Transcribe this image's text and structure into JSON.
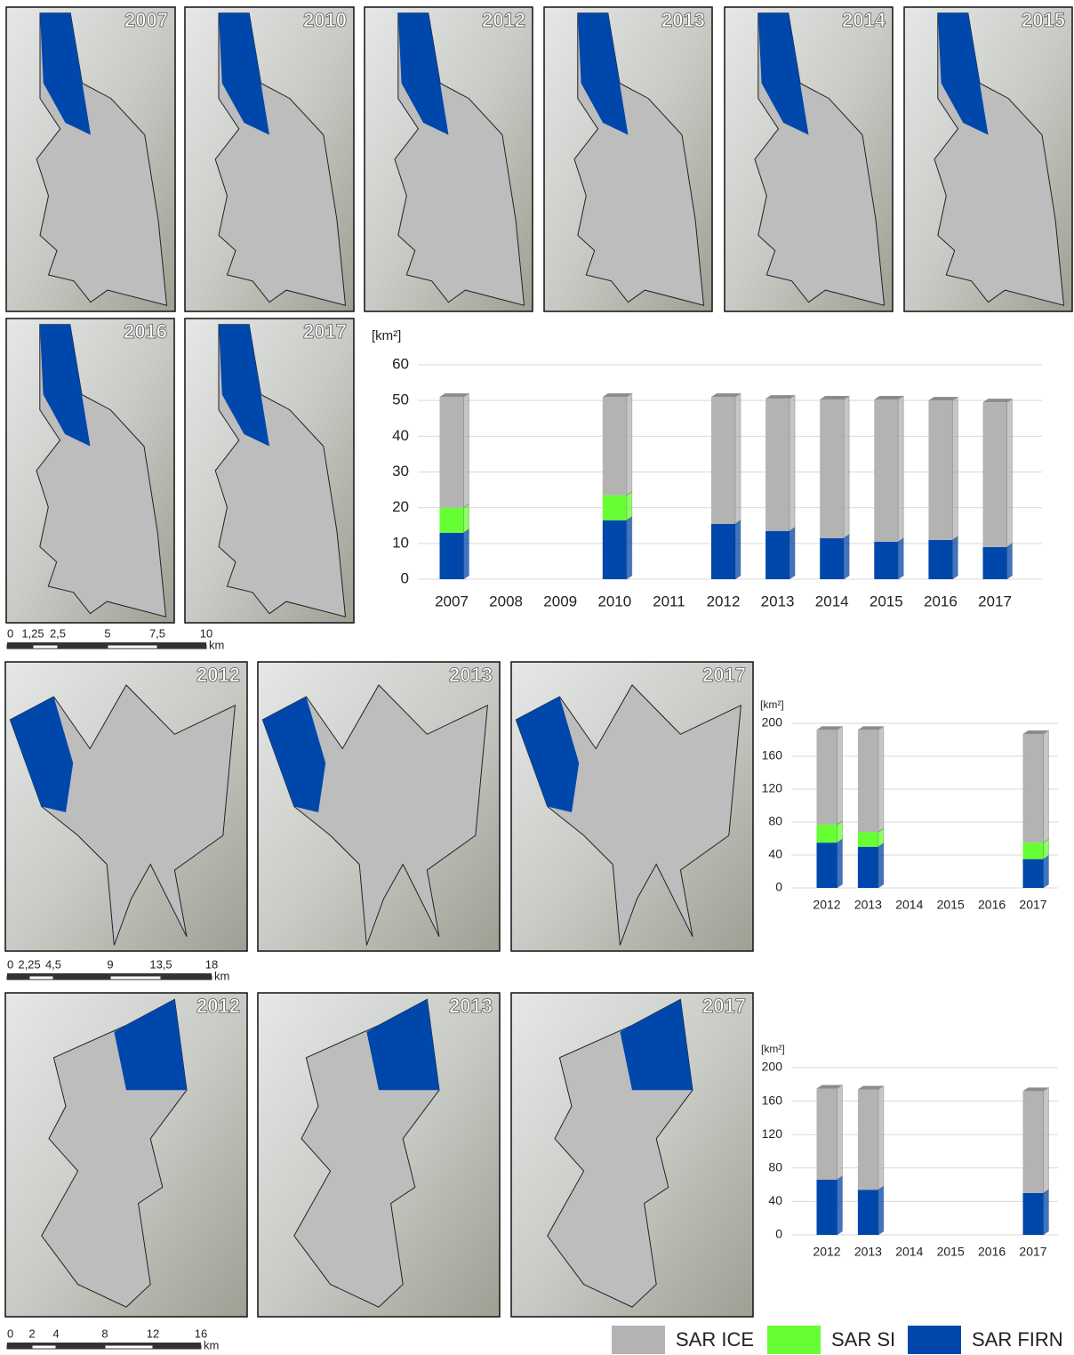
{
  "maps": [
    {
      "year": "2007"
    },
    {
      "year": "2010"
    },
    {
      "year": "2012"
    },
    {
      "year": "2013"
    },
    {
      "year": "2014"
    },
    {
      "year": "2015"
    },
    {
      "year": "2016"
    },
    {
      "year": "2017"
    },
    {
      "year": "2012"
    },
    {
      "year": "2013"
    },
    {
      "year": "2017"
    },
    {
      "year": "2012"
    },
    {
      "year": "2013"
    },
    {
      "year": "2017"
    }
  ],
  "scale_bars": [
    {
      "labels": [
        "0",
        "1,25",
        "2,5",
        "5",
        "7,5",
        "10"
      ],
      "unit": "km"
    },
    {
      "labels": [
        "0",
        "2,25",
        "4,5",
        "9",
        "13,5",
        "18"
      ],
      "unit": "km"
    },
    {
      "labels": [
        "0",
        "2",
        "4",
        "8",
        "12",
        "16"
      ],
      "unit": "km"
    }
  ],
  "chart_data": [
    {
      "type": "bar",
      "stacked": true,
      "y_label": "[km²]",
      "categories": [
        "2007",
        "2008",
        "2009",
        "2010",
        "2011",
        "2012",
        "2013",
        "2014",
        "2015",
        "2016",
        "2017"
      ],
      "series": [
        {
          "name": "SAR ICE",
          "color": "#b3b3b3",
          "values": [
            31,
            null,
            null,
            27.5,
            null,
            35.5,
            37,
            38.8,
            39.8,
            39,
            40.5
          ]
        },
        {
          "name": "SAR SI",
          "color": "#66ff33",
          "values": [
            7,
            null,
            null,
            7,
            null,
            null,
            null,
            null,
            null,
            null,
            null
          ]
        },
        {
          "name": "SAR FIRN",
          "color": "#0047ab",
          "values": [
            13,
            null,
            null,
            16.5,
            null,
            15.5,
            13.5,
            11.5,
            10.5,
            11,
            9
          ]
        }
      ],
      "ylim": [
        0,
        60
      ],
      "yticks": [
        0,
        10,
        20,
        30,
        40,
        50,
        60
      ],
      "grid": true
    },
    {
      "type": "bar",
      "stacked": true,
      "y_label": "[km²]",
      "categories": [
        "2012",
        "2013",
        "2014",
        "2015",
        "2016",
        "2017"
      ],
      "series": [
        {
          "color": "#b3b3b3",
          "values": [
            115,
            124,
            null,
            null,
            null,
            132
          ]
        },
        {
          "color": "#66ff33",
          "values": [
            22,
            18,
            null,
            null,
            null,
            20
          ]
        },
        {
          "color": "#0047ab",
          "values": [
            55,
            50,
            null,
            null,
            null,
            35
          ]
        }
      ],
      "ylim": [
        0,
        200
      ],
      "yticks": [
        0,
        40,
        80,
        120,
        160,
        200
      ],
      "grid": true
    },
    {
      "type": "bar",
      "stacked": true,
      "y_label": "[km²]",
      "categories": [
        "2012",
        "2013",
        "2014",
        "2015",
        "2016",
        "2017"
      ],
      "series": [
        {
          "color": "#b3b3b3",
          "values": [
            109,
            120,
            null,
            null,
            null,
            122
          ]
        },
        {
          "color": "#0047ab",
          "values": [
            66,
            54,
            null,
            null,
            null,
            50
          ]
        }
      ],
      "ylim": [
        0,
        200
      ],
      "yticks": [
        0,
        40,
        80,
        120,
        160,
        200
      ],
      "grid": true
    }
  ]
}
